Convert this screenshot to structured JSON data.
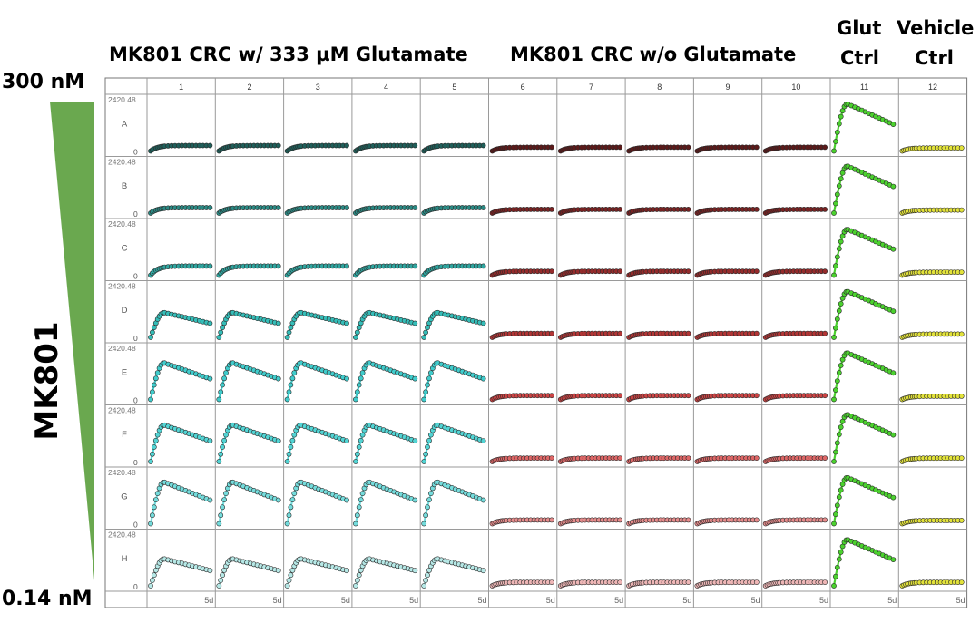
{
  "headers": {
    "with_glu": "MK801 CRC w/ 333 µM Glutamate",
    "without_glu": "MK801 CRC w/o Glutamate",
    "glut_ctrl_line1": "Glut",
    "glut_ctrl_line2": "Ctrl",
    "vehicle_ctrl_line1": "Vehicle",
    "vehicle_ctrl_line2": "Ctrl"
  },
  "side_labels": {
    "top_conc": "300 nM",
    "bottom_conc": "0.14 nM",
    "compound": "MK801"
  },
  "colors": {
    "gradient_triangle": "#6aa84f",
    "grid_line": "#9a9a9a",
    "with_glu_rows": [
      "#1f5f5a",
      "#2a8a84",
      "#2fa6a0",
      "#35bdb8",
      "#40cccc",
      "#52d4d4",
      "#74dcdc",
      "#b6e8e6"
    ],
    "without_glu_rows": [
      "#5c1a1a",
      "#7a2222",
      "#952b2b",
      "#b23535",
      "#cc4444",
      "#dd6666",
      "#e78c8c",
      "#eeb6b6"
    ],
    "glut_ctrl": "#4bd12e",
    "vehicle_ctrl": "#e2e23a"
  },
  "chart_data": {
    "type": "line",
    "layout": "96-well plate kinetic trace grid",
    "columns": [
      "1",
      "2",
      "3",
      "4",
      "5",
      "6",
      "7",
      "8",
      "9",
      "10",
      "11",
      "12"
    ],
    "rows": [
      "A",
      "B",
      "C",
      "D",
      "E",
      "F",
      "G",
      "H"
    ],
    "y_axis_max_label": "2420.48",
    "y_axis_min_label": "0",
    "x_axis_end_label": "5d",
    "ylim": [
      0,
      2420.48
    ],
    "peak_response_by_row": {
      "with_glutamate_cols_1_5": [
        250,
        250,
        420,
        1130,
        1670,
        1670,
        1900,
        1230
      ],
      "without_glutamate_cols_6_10": [
        170,
        170,
        180,
        180,
        180,
        160,
        170,
        160
      ],
      "glut_ctrl_col_11": [
        2150,
        2150,
        2100,
        2100,
        2130,
        2150,
        2110,
        2110
      ],
      "vehicle_ctrl_col_12": [
        140,
        140,
        140,
        150,
        150,
        160,
        150,
        160
      ]
    }
  }
}
